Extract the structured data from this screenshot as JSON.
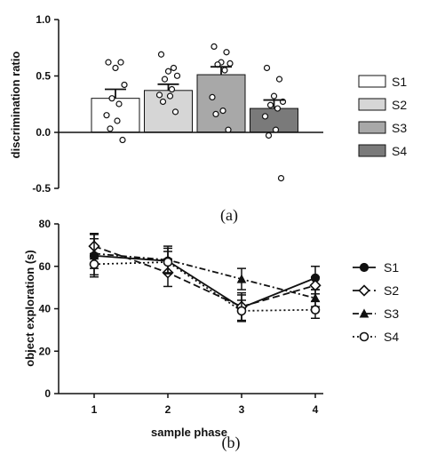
{
  "chart_data": [
    {
      "type": "bar",
      "caption": "(a)",
      "ylabel": "discrimination ratio",
      "xlabel": "",
      "ylim": [
        -0.5,
        1.0
      ],
      "yticks": [
        "1.0",
        "0.5",
        "0.0",
        "-0.5"
      ],
      "grid": false,
      "legend_position": "right",
      "categories": [
        "S1",
        "S2",
        "S3",
        "S4"
      ],
      "values": [
        0.3,
        0.37,
        0.51,
        0.21
      ],
      "errors": [
        0.08,
        0.055,
        0.07,
        0.075
      ],
      "colors": [
        "#ffffff",
        "#d6d6d6",
        "#a8a8a8",
        "#7a7a7a"
      ],
      "points": [
        [
          0.62,
          0.62,
          0.57,
          0.42,
          0.3,
          0.25,
          0.15,
          0.1,
          0.03,
          -0.07
        ],
        [
          0.69,
          0.57,
          0.54,
          0.5,
          0.47,
          0.38,
          0.33,
          0.32,
          0.27,
          0.18
        ],
        [
          0.76,
          0.71,
          0.62,
          0.61,
          0.6,
          0.55,
          0.31,
          0.19,
          0.16,
          0.02
        ],
        [
          0.57,
          0.47,
          0.32,
          0.27,
          0.24,
          0.21,
          0.14,
          0.02,
          -0.03,
          -0.41
        ]
      ],
      "legend": [
        {
          "label": "S1",
          "color": "#ffffff"
        },
        {
          "label": "S2",
          "color": "#d6d6d6"
        },
        {
          "label": "S3",
          "color": "#a8a8a8"
        },
        {
          "label": "S4",
          "color": "#7a7a7a"
        }
      ]
    },
    {
      "type": "line",
      "caption": "(b)",
      "xlabel": "sample phase",
      "ylabel": "object exploration (s)",
      "x": [
        1,
        2,
        3,
        4
      ],
      "xticks": [
        "1",
        "2",
        "3",
        "4"
      ],
      "ylim": [
        0,
        80
      ],
      "yticks": [
        "80",
        "60",
        "40",
        "20",
        "0"
      ],
      "grid": false,
      "legend_position": "right",
      "series": [
        {
          "name": "S1",
          "values": [
            65,
            62.5,
            40.5,
            54.5
          ],
          "errors": [
            10,
            6,
            6,
            5.5
          ],
          "marker": "filled-circle",
          "dash": "solid"
        },
        {
          "name": "S2",
          "values": [
            69.5,
            57,
            41,
            51
          ],
          "errors": [
            6,
            6.5,
            6.5,
            4
          ],
          "marker": "open-diamond",
          "dash": "long-dash"
        },
        {
          "name": "S3",
          "values": [
            66,
            63,
            54,
            45
          ],
          "errors": [
            7,
            6.5,
            5,
            4
          ],
          "marker": "filled-triangle",
          "dash": "dash-dot"
        },
        {
          "name": "S4",
          "values": [
            61,
            62,
            39,
            39.5
          ],
          "errors": [
            5,
            5,
            5,
            4
          ],
          "marker": "open-circle",
          "dash": "dotted"
        }
      ]
    }
  ]
}
